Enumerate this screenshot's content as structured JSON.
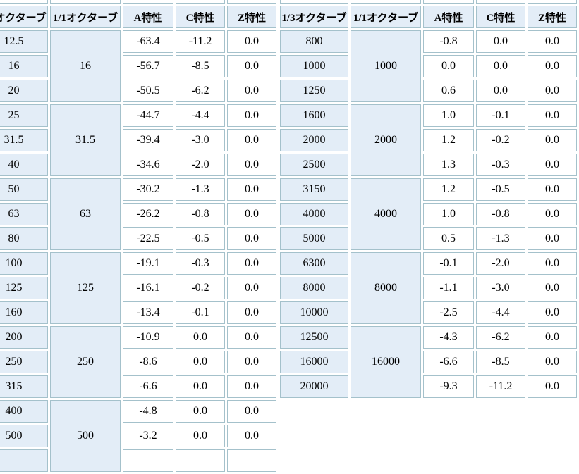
{
  "colors": {
    "cell_border": "#a4c1cb",
    "band_cell_bg": "#e3edf7",
    "value_cell_bg": "#ffffff",
    "page_bg": "#ffffff",
    "text": "#000000"
  },
  "columns": [
    "1/3オクターブ",
    "1/1オクターブ",
    "A特性",
    "C特性",
    "Z特性"
  ],
  "left_table": {
    "groups": [
      {
        "octave1": "16",
        "rows": [
          {
            "f": "12.5",
            "a": "-63.4",
            "c": "-11.2",
            "z": "0.0"
          },
          {
            "f": "16",
            "a": "-56.7",
            "c": "-8.5",
            "z": "0.0"
          },
          {
            "f": "20",
            "a": "-50.5",
            "c": "-6.2",
            "z": "0.0"
          }
        ]
      },
      {
        "octave1": "31.5",
        "rows": [
          {
            "f": "25",
            "a": "-44.7",
            "c": "-4.4",
            "z": "0.0"
          },
          {
            "f": "31.5",
            "a": "-39.4",
            "c": "-3.0",
            "z": "0.0"
          },
          {
            "f": "40",
            "a": "-34.6",
            "c": "-2.0",
            "z": "0.0"
          }
        ]
      },
      {
        "octave1": "63",
        "rows": [
          {
            "f": "50",
            "a": "-30.2",
            "c": "-1.3",
            "z": "0.0"
          },
          {
            "f": "63",
            "a": "-26.2",
            "c": "-0.8",
            "z": "0.0"
          },
          {
            "f": "80",
            "a": "-22.5",
            "c": "-0.5",
            "z": "0.0"
          }
        ]
      },
      {
        "octave1": "125",
        "rows": [
          {
            "f": "100",
            "a": "-19.1",
            "c": "-0.3",
            "z": "0.0"
          },
          {
            "f": "125",
            "a": "-16.1",
            "c": "-0.2",
            "z": "0.0"
          },
          {
            "f": "160",
            "a": "-13.4",
            "c": "-0.1",
            "z": "0.0"
          }
        ]
      },
      {
        "octave1": "250",
        "rows": [
          {
            "f": "200",
            "a": "-10.9",
            "c": "0.0",
            "z": "0.0"
          },
          {
            "f": "250",
            "a": "-8.6",
            "c": "0.0",
            "z": "0.0"
          },
          {
            "f": "315",
            "a": "-6.6",
            "c": "0.0",
            "z": "0.0"
          }
        ]
      },
      {
        "octave1": "500",
        "rows": [
          {
            "f": "400",
            "a": "-4.8",
            "c": "0.0",
            "z": "0.0"
          },
          {
            "f": "500",
            "a": "-3.2",
            "c": "0.0",
            "z": "0.0"
          },
          {
            "f": "",
            "a": "",
            "c": "",
            "z": ""
          }
        ]
      }
    ]
  },
  "right_table": {
    "groups": [
      {
        "octave1": "1000",
        "rows": [
          {
            "f": "800",
            "a": "-0.8",
            "c": "0.0",
            "z": "0.0"
          },
          {
            "f": "1000",
            "a": "0.0",
            "c": "0.0",
            "z": "0.0"
          },
          {
            "f": "1250",
            "a": "0.6",
            "c": "0.0",
            "z": "0.0"
          }
        ]
      },
      {
        "octave1": "2000",
        "rows": [
          {
            "f": "1600",
            "a": "1.0",
            "c": "-0.1",
            "z": "0.0"
          },
          {
            "f": "2000",
            "a": "1.2",
            "c": "-0.2",
            "z": "0.0"
          },
          {
            "f": "2500",
            "a": "1.3",
            "c": "-0.3",
            "z": "0.0"
          }
        ]
      },
      {
        "octave1": "4000",
        "rows": [
          {
            "f": "3150",
            "a": "1.2",
            "c": "-0.5",
            "z": "0.0"
          },
          {
            "f": "4000",
            "a": "1.0",
            "c": "-0.8",
            "z": "0.0"
          },
          {
            "f": "5000",
            "a": "0.5",
            "c": "-1.3",
            "z": "0.0"
          }
        ]
      },
      {
        "octave1": "8000",
        "rows": [
          {
            "f": "6300",
            "a": "-0.1",
            "c": "-2.0",
            "z": "0.0"
          },
          {
            "f": "8000",
            "a": "-1.1",
            "c": "-3.0",
            "z": "0.0"
          },
          {
            "f": "10000",
            "a": "-2.5",
            "c": "-4.4",
            "z": "0.0"
          }
        ]
      },
      {
        "octave1": "16000",
        "rows": [
          {
            "f": "12500",
            "a": "-4.3",
            "c": "-6.2",
            "z": "0.0"
          },
          {
            "f": "16000",
            "a": "-6.6",
            "c": "-8.5",
            "z": "0.0"
          },
          {
            "f": "20000",
            "a": "-9.3",
            "c": "-11.2",
            "z": "0.0"
          }
        ]
      }
    ]
  },
  "chart_data": {
    "type": "table",
    "columns": [
      "1/3オクターブ",
      "1/1オクターブ",
      "A特性",
      "C特性",
      "Z特性"
    ],
    "frequencies_hz": [
      12.5,
      16,
      20,
      25,
      31.5,
      40,
      50,
      63,
      80,
      100,
      125,
      160,
      200,
      250,
      315,
      400,
      500,
      800,
      1000,
      1250,
      1600,
      2000,
      2500,
      3150,
      4000,
      5000,
      6300,
      8000,
      10000,
      12500,
      16000,
      20000
    ],
    "octave_1_1_bands": [
      16,
      31.5,
      63,
      125,
      250,
      500,
      1000,
      2000,
      4000,
      8000,
      16000
    ],
    "series": [
      {
        "name": "A特性",
        "values": [
          -63.4,
          -56.7,
          -50.5,
          -44.7,
          -39.4,
          -34.6,
          -30.2,
          -26.2,
          -22.5,
          -19.1,
          -16.1,
          -13.4,
          -10.9,
          -8.6,
          -6.6,
          -4.8,
          -3.2,
          -0.8,
          0.0,
          0.6,
          1.0,
          1.2,
          1.3,
          1.2,
          1.0,
          0.5,
          -0.1,
          -1.1,
          -2.5,
          -4.3,
          -6.6,
          -9.3
        ]
      },
      {
        "name": "C特性",
        "values": [
          -11.2,
          -8.5,
          -6.2,
          -4.4,
          -3.0,
          -2.0,
          -1.3,
          -0.8,
          -0.5,
          -0.3,
          -0.2,
          -0.1,
          0.0,
          0.0,
          0.0,
          0.0,
          0.0,
          0.0,
          0.0,
          0.0,
          -0.1,
          -0.2,
          -0.3,
          -0.5,
          -0.8,
          -1.3,
          -2.0,
          -3.0,
          -4.4,
          -6.2,
          -8.5,
          -11.2
        ]
      },
      {
        "name": "Z特性",
        "values": [
          0.0,
          0.0,
          0.0,
          0.0,
          0.0,
          0.0,
          0.0,
          0.0,
          0.0,
          0.0,
          0.0,
          0.0,
          0.0,
          0.0,
          0.0,
          0.0,
          0.0,
          0.0,
          0.0,
          0.0,
          0.0,
          0.0,
          0.0,
          0.0,
          0.0,
          0.0,
          0.0,
          0.0,
          0.0,
          0.0,
          0.0,
          0.0
        ]
      }
    ]
  }
}
